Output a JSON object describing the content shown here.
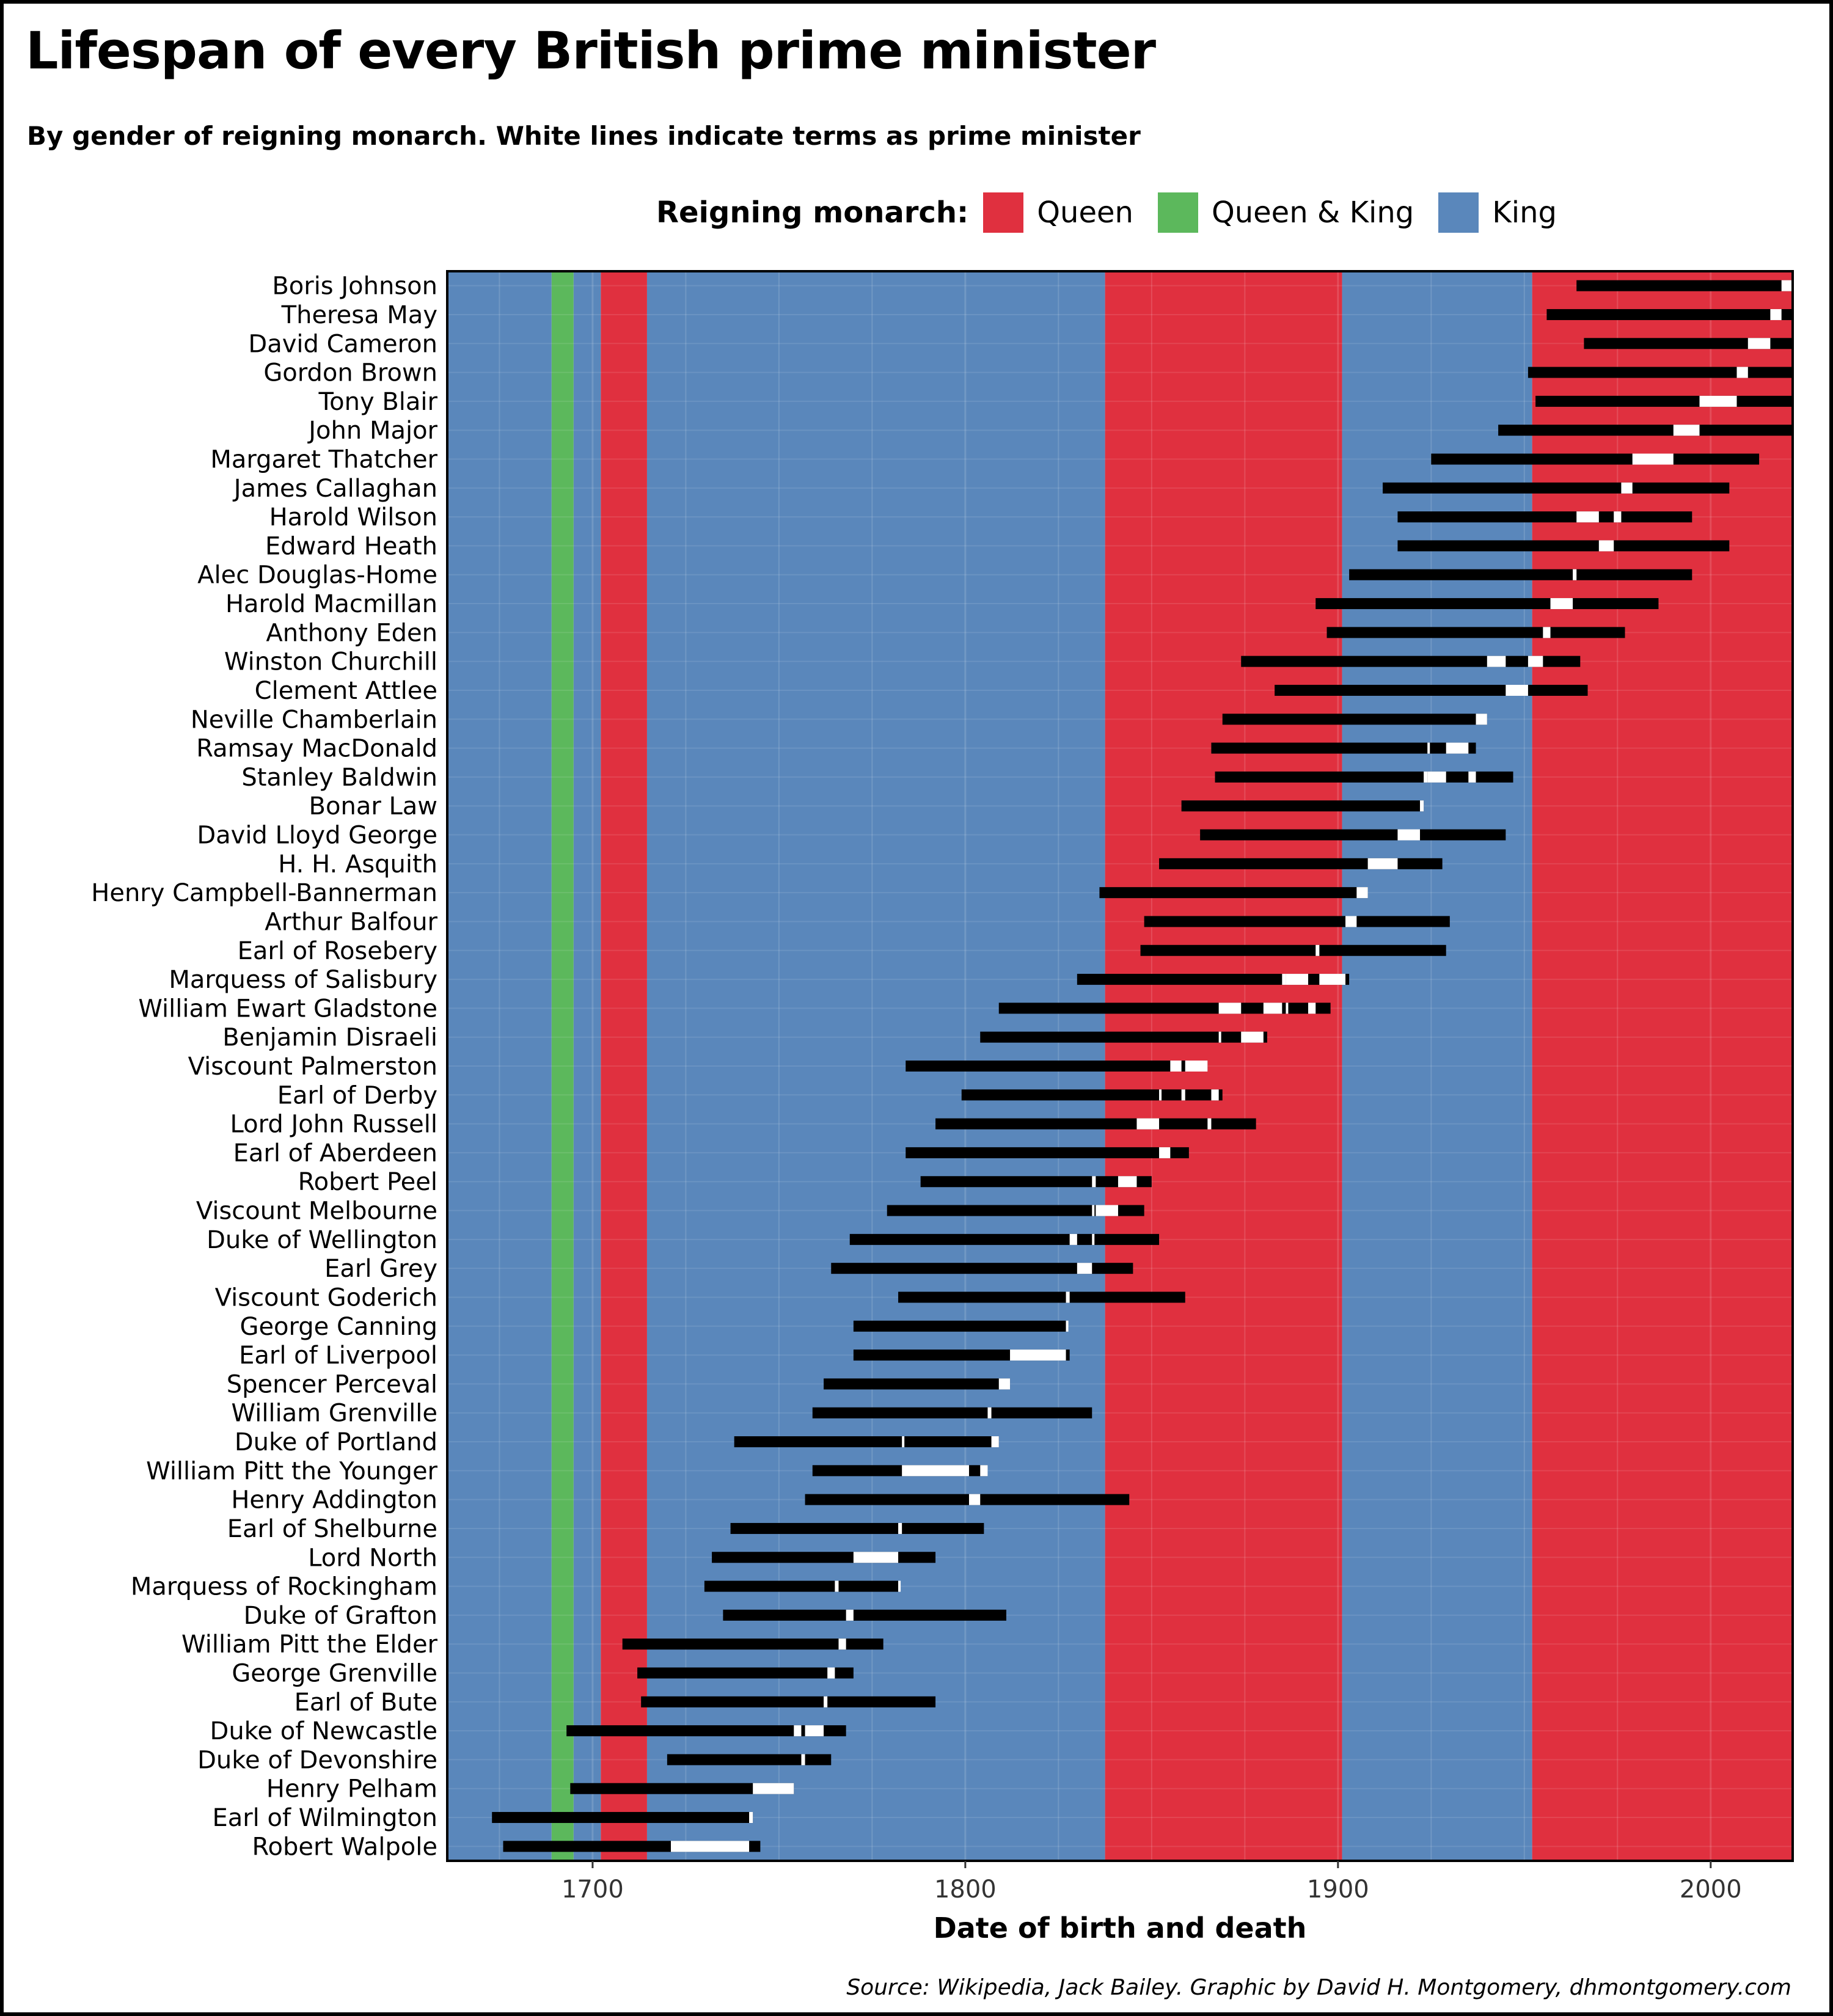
{
  "header": {
    "title": "Lifespan of every British prime minister",
    "subtitle": "By gender of reigning monarch. White lines indicate terms as prime minister"
  },
  "legend": {
    "title": "Reigning monarch:",
    "items": [
      {
        "label": "Queen",
        "color": "#e0303f"
      },
      {
        "label": "Queen & King",
        "color": "#5cb85c"
      },
      {
        "label": "King",
        "color": "#5a87bb"
      }
    ]
  },
  "source": "Source: Wikipedia, Jack Bailey. Graphic by David H. Montgomery, dhmontgomery.com",
  "chart_data": {
    "type": "timeline",
    "xlabel": "Date of birth and death",
    "xlim": [
      1661,
      2022
    ],
    "xticks": [
      1700,
      1800,
      1900,
      2000
    ],
    "grid": true,
    "legend_position": "top",
    "colors": {
      "Queen": "#e0303f",
      "Queen & King": "#5cb85c",
      "King": "#5a87bb",
      "life": "#000000",
      "term": "#ffffff"
    },
    "monarch_periods": [
      {
        "start": 1661,
        "end": 1689,
        "type": "King"
      },
      {
        "start": 1689,
        "end": 1694.9,
        "type": "Queen & King"
      },
      {
        "start": 1694.9,
        "end": 1702.2,
        "type": "King"
      },
      {
        "start": 1702.2,
        "end": 1714.6,
        "type": "Queen"
      },
      {
        "start": 1714.6,
        "end": 1837.5,
        "type": "King"
      },
      {
        "start": 1837.5,
        "end": 1901.1,
        "type": "Queen"
      },
      {
        "start": 1901.1,
        "end": 1952.1,
        "type": "King"
      },
      {
        "start": 1952.1,
        "end": 2022,
        "type": "Queen"
      }
    ],
    "prime_ministers": [
      {
        "name": "Robert Walpole",
        "birth": 1676,
        "death": 1745,
        "terms": [
          [
            1721,
            1742
          ]
        ]
      },
      {
        "name": "Earl of Wilmington",
        "birth": 1673,
        "death": 1743,
        "terms": [
          [
            1742,
            1743
          ]
        ]
      },
      {
        "name": "Henry Pelham",
        "birth": 1694,
        "death": 1754,
        "terms": [
          [
            1743,
            1754
          ]
        ]
      },
      {
        "name": "Duke of Devonshire",
        "birth": 1720,
        "death": 1764,
        "terms": [
          [
            1756,
            1757
          ]
        ]
      },
      {
        "name": "Duke of Newcastle",
        "birth": 1693,
        "death": 1768,
        "terms": [
          [
            1754,
            1756
          ],
          [
            1757,
            1762
          ]
        ]
      },
      {
        "name": "Earl of Bute",
        "birth": 1713,
        "death": 1792,
        "terms": [
          [
            1762,
            1763
          ]
        ]
      },
      {
        "name": "George Grenville",
        "birth": 1712,
        "death": 1770,
        "terms": [
          [
            1763,
            1765
          ]
        ]
      },
      {
        "name": "William Pitt the Elder",
        "birth": 1708,
        "death": 1778,
        "terms": [
          [
            1766,
            1768
          ]
        ]
      },
      {
        "name": "Duke of Grafton",
        "birth": 1735,
        "death": 1811,
        "terms": [
          [
            1768,
            1770
          ]
        ]
      },
      {
        "name": "Marquess of Rockingham",
        "birth": 1730,
        "death": 1782,
        "terms": [
          [
            1765,
            1766
          ],
          [
            1782,
            1782
          ]
        ]
      },
      {
        "name": "Lord North",
        "birth": 1732,
        "death": 1792,
        "terms": [
          [
            1770,
            1782
          ]
        ]
      },
      {
        "name": "Earl of Shelburne",
        "birth": 1737,
        "death": 1805,
        "terms": [
          [
            1782,
            1783
          ]
        ]
      },
      {
        "name": "Henry Addington",
        "birth": 1757,
        "death": 1844,
        "terms": [
          [
            1801,
            1804
          ]
        ]
      },
      {
        "name": "William Pitt the Younger",
        "birth": 1759,
        "death": 1806,
        "terms": [
          [
            1783,
            1801
          ],
          [
            1804,
            1806
          ]
        ]
      },
      {
        "name": "Duke of Portland",
        "birth": 1738,
        "death": 1809,
        "terms": [
          [
            1783,
            1783
          ],
          [
            1807,
            1809
          ]
        ]
      },
      {
        "name": "William Grenville",
        "birth": 1759,
        "death": 1834,
        "terms": [
          [
            1806,
            1807
          ]
        ]
      },
      {
        "name": "Spencer Perceval",
        "birth": 1762,
        "death": 1812,
        "terms": [
          [
            1809,
            1812
          ]
        ]
      },
      {
        "name": "Earl of Liverpool",
        "birth": 1770,
        "death": 1828,
        "terms": [
          [
            1812,
            1827
          ]
        ]
      },
      {
        "name": "George Canning",
        "birth": 1770,
        "death": 1827,
        "terms": [
          [
            1827,
            1827
          ]
        ]
      },
      {
        "name": "Viscount Goderich",
        "birth": 1782,
        "death": 1859,
        "terms": [
          [
            1827,
            1828
          ]
        ]
      },
      {
        "name": "Earl Grey",
        "birth": 1764,
        "death": 1845,
        "terms": [
          [
            1830,
            1834
          ]
        ]
      },
      {
        "name": "Duke of Wellington",
        "birth": 1769,
        "death": 1852,
        "terms": [
          [
            1828,
            1830
          ],
          [
            1834,
            1834
          ]
        ]
      },
      {
        "name": "Viscount Melbourne",
        "birth": 1779,
        "death": 1848,
        "terms": [
          [
            1834,
            1834
          ],
          [
            1835,
            1841
          ]
        ]
      },
      {
        "name": "Robert Peel",
        "birth": 1788,
        "death": 1850,
        "terms": [
          [
            1834,
            1835
          ],
          [
            1841,
            1846
          ]
        ]
      },
      {
        "name": "Earl of Aberdeen",
        "birth": 1784,
        "death": 1860,
        "terms": [
          [
            1852,
            1855
          ]
        ]
      },
      {
        "name": "Lord John Russell",
        "birth": 1792,
        "death": 1878,
        "terms": [
          [
            1846,
            1852
          ],
          [
            1865,
            1866
          ]
        ]
      },
      {
        "name": "Earl of Derby",
        "birth": 1799,
        "death": 1869,
        "terms": [
          [
            1852,
            1852
          ],
          [
            1858,
            1859
          ],
          [
            1866,
            1868
          ]
        ]
      },
      {
        "name": "Viscount Palmerston",
        "birth": 1784,
        "death": 1865,
        "terms": [
          [
            1855,
            1858
          ],
          [
            1859,
            1865
          ]
        ]
      },
      {
        "name": "Benjamin Disraeli",
        "birth": 1804,
        "death": 1881,
        "terms": [
          [
            1868,
            1868
          ],
          [
            1874,
            1880
          ]
        ]
      },
      {
        "name": "William Ewart Gladstone",
        "birth": 1809,
        "death": 1898,
        "terms": [
          [
            1868,
            1874
          ],
          [
            1880,
            1885
          ],
          [
            1886,
            1886
          ],
          [
            1892,
            1894
          ]
        ]
      },
      {
        "name": "Marquess of Salisbury",
        "birth": 1830,
        "death": 1903,
        "terms": [
          [
            1885,
            1886
          ],
          [
            1886,
            1892
          ],
          [
            1895,
            1902
          ]
        ]
      },
      {
        "name": "Earl of Rosebery",
        "birth": 1847,
        "death": 1929,
        "terms": [
          [
            1894,
            1895
          ]
        ]
      },
      {
        "name": "Arthur Balfour",
        "birth": 1848,
        "death": 1930,
        "terms": [
          [
            1902,
            1905
          ]
        ]
      },
      {
        "name": "Henry Campbell-Bannerman",
        "birth": 1836,
        "death": 1908,
        "terms": [
          [
            1905,
            1908
          ]
        ]
      },
      {
        "name": "H. H. Asquith",
        "birth": 1852,
        "death": 1928,
        "terms": [
          [
            1908,
            1916
          ]
        ]
      },
      {
        "name": "David Lloyd George",
        "birth": 1863,
        "death": 1945,
        "terms": [
          [
            1916,
            1922
          ]
        ]
      },
      {
        "name": "Bonar Law",
        "birth": 1858,
        "death": 1923,
        "terms": [
          [
            1922,
            1923
          ]
        ]
      },
      {
        "name": "Stanley Baldwin",
        "birth": 1867,
        "death": 1947,
        "terms": [
          [
            1923,
            1924
          ],
          [
            1924,
            1929
          ],
          [
            1935,
            1937
          ]
        ]
      },
      {
        "name": "Ramsay MacDonald",
        "birth": 1866,
        "death": 1937,
        "terms": [
          [
            1924,
            1924
          ],
          [
            1929,
            1935
          ]
        ]
      },
      {
        "name": "Neville Chamberlain",
        "birth": 1869,
        "death": 1940,
        "terms": [
          [
            1937,
            1940
          ]
        ]
      },
      {
        "name": "Clement Attlee",
        "birth": 1883,
        "death": 1967,
        "terms": [
          [
            1945,
            1951
          ]
        ]
      },
      {
        "name": "Winston Churchill",
        "birth": 1874,
        "death": 1965,
        "terms": [
          [
            1940,
            1945
          ],
          [
            1951,
            1955
          ]
        ]
      },
      {
        "name": "Anthony Eden",
        "birth": 1897,
        "death": 1977,
        "terms": [
          [
            1955,
            1957
          ]
        ]
      },
      {
        "name": "Harold Macmillan",
        "birth": 1894,
        "death": 1986,
        "terms": [
          [
            1957,
            1963
          ]
        ]
      },
      {
        "name": "Alec Douglas-Home",
        "birth": 1903,
        "death": 1995,
        "terms": [
          [
            1963,
            1964
          ]
        ]
      },
      {
        "name": "Edward Heath",
        "birth": 1916,
        "death": 2005,
        "terms": [
          [
            1970,
            1974
          ]
        ]
      },
      {
        "name": "Harold Wilson",
        "birth": 1916,
        "death": 1995,
        "terms": [
          [
            1964,
            1970
          ],
          [
            1974,
            1976
          ]
        ]
      },
      {
        "name": "James Callaghan",
        "birth": 1912,
        "death": 2005,
        "terms": [
          [
            1976,
            1979
          ]
        ]
      },
      {
        "name": "Margaret Thatcher",
        "birth": 1925,
        "death": 2013,
        "terms": [
          [
            1979,
            1990
          ]
        ]
      },
      {
        "name": "John Major",
        "birth": 1943,
        "death": 2022,
        "terms": [
          [
            1990,
            1997
          ]
        ]
      },
      {
        "name": "Tony Blair",
        "birth": 1953,
        "death": 2022,
        "terms": [
          [
            1997,
            2007
          ]
        ]
      },
      {
        "name": "Gordon Brown",
        "birth": 1951,
        "death": 2022,
        "terms": [
          [
            2007,
            2010
          ]
        ]
      },
      {
        "name": "David Cameron",
        "birth": 1966,
        "death": 2022,
        "terms": [
          [
            2010,
            2016
          ]
        ]
      },
      {
        "name": "Theresa May",
        "birth": 1956,
        "death": 2022,
        "terms": [
          [
            2016,
            2019
          ]
        ]
      },
      {
        "name": "Boris Johnson",
        "birth": 1964,
        "death": 2022,
        "terms": [
          [
            2019,
            2022
          ]
        ]
      }
    ]
  }
}
